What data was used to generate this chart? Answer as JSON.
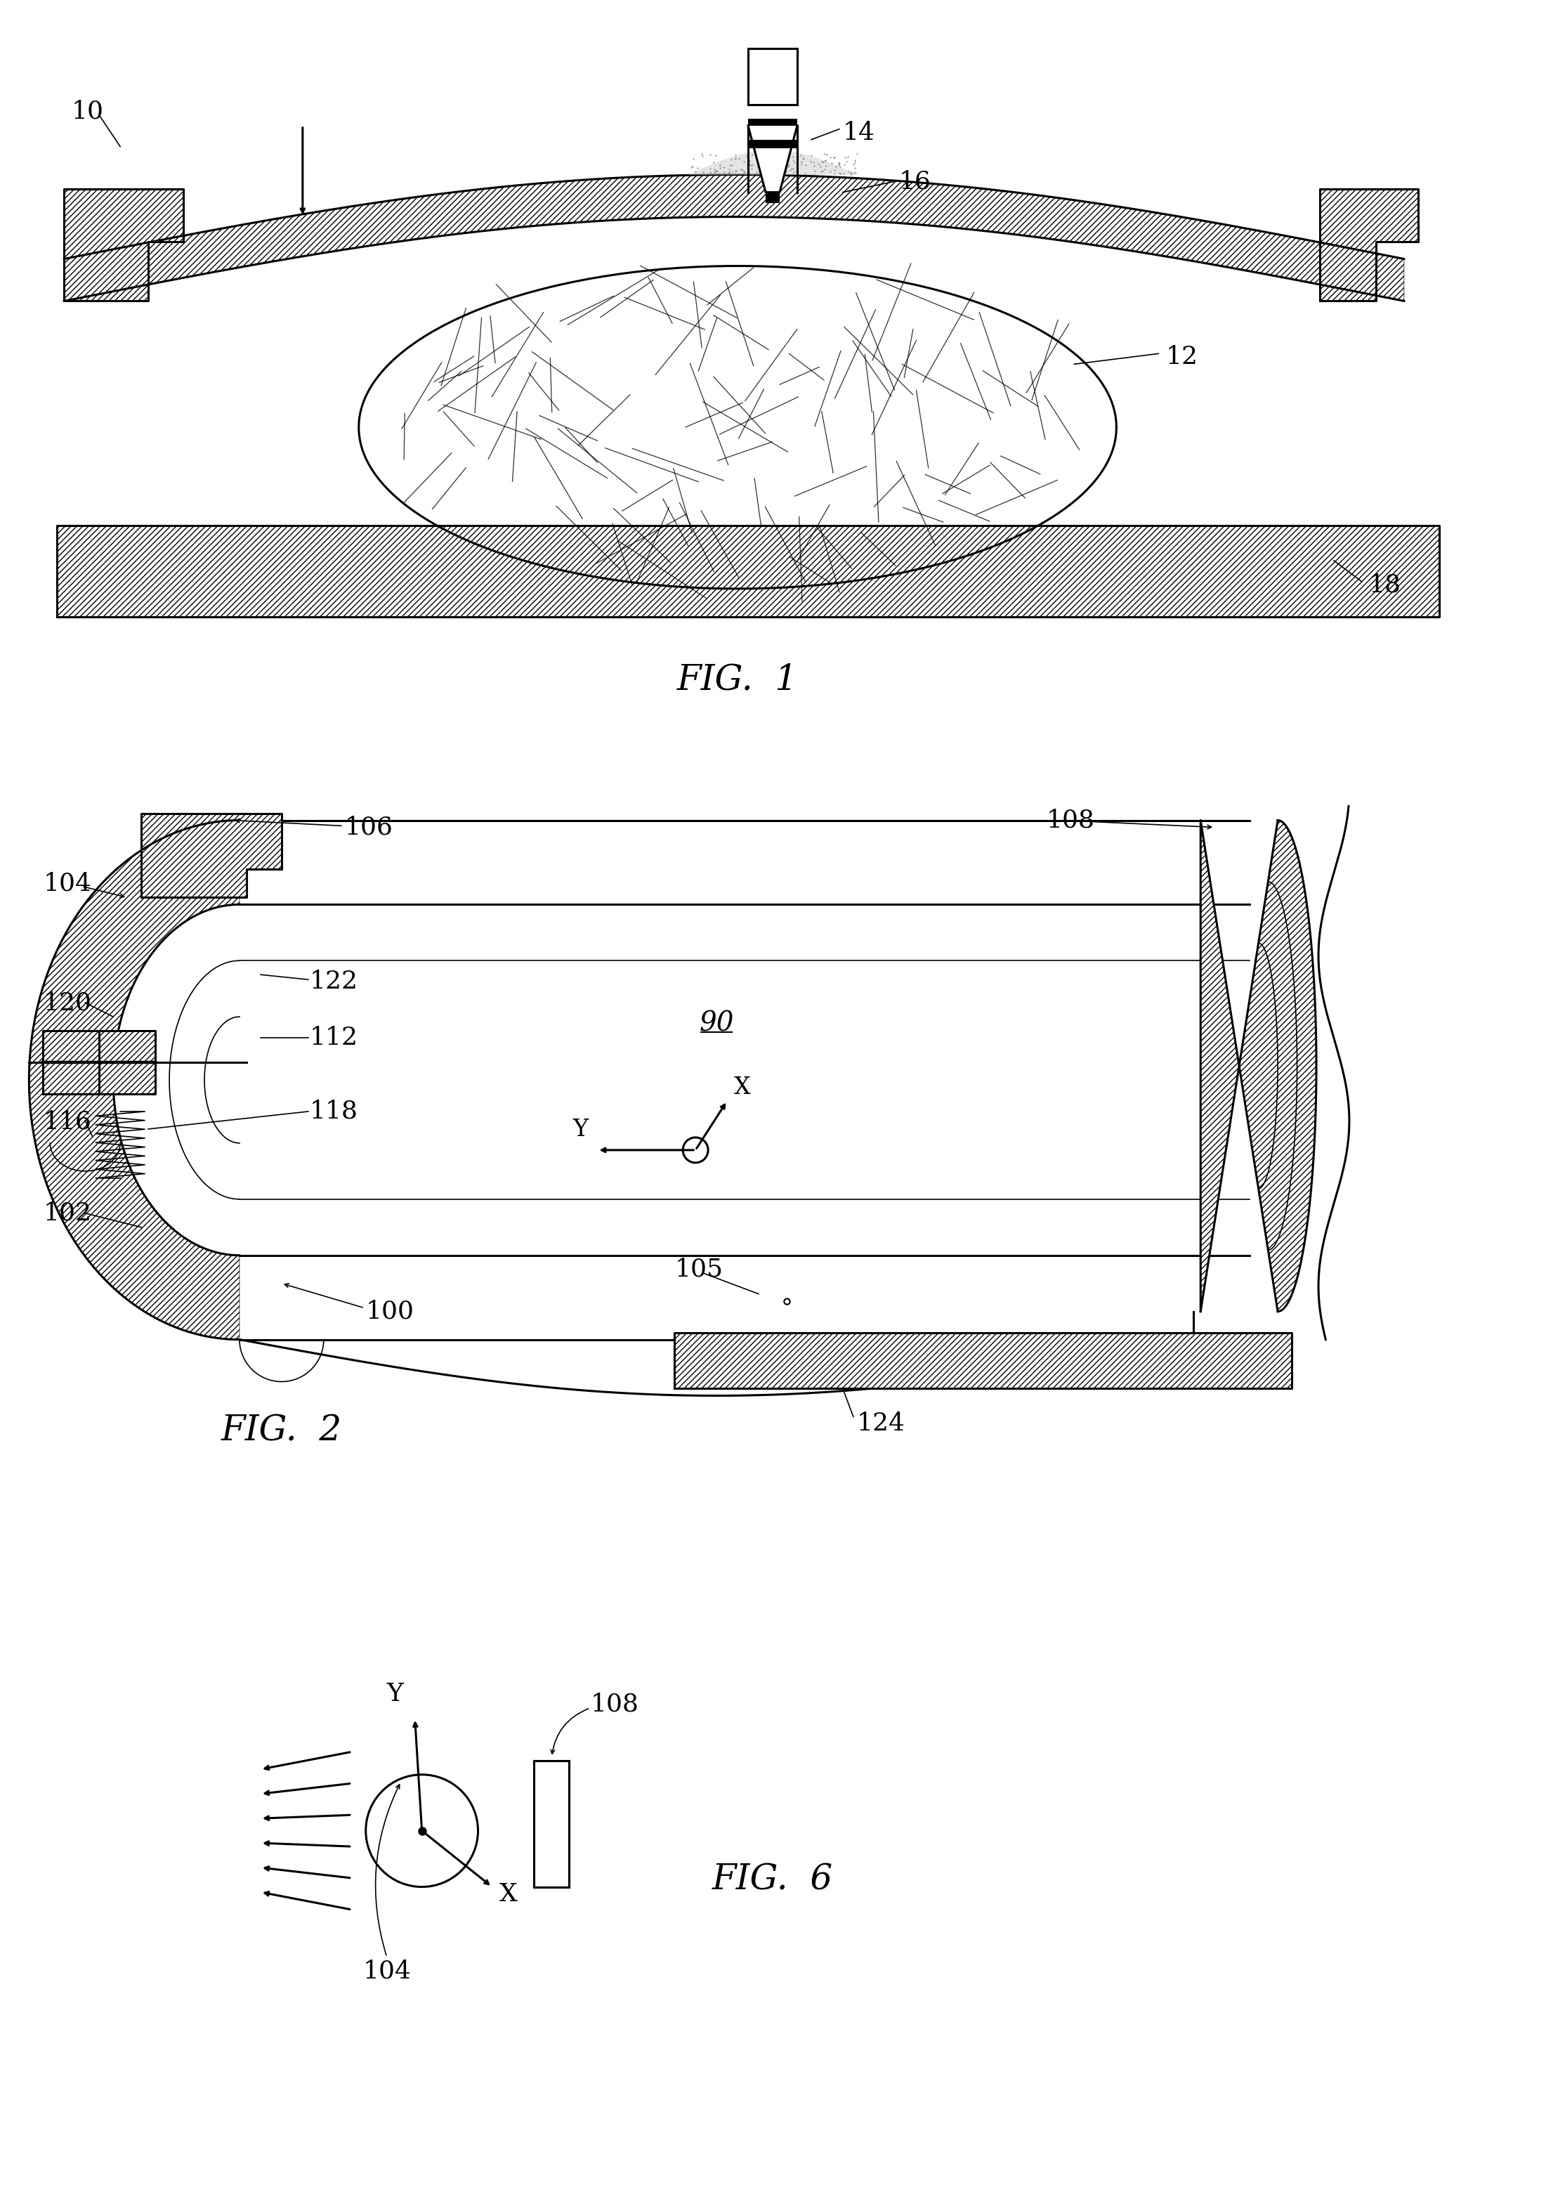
{
  "background_color": "#ffffff",
  "line_color": "#000000",
  "fig1_label": "FIG.  1",
  "fig2_label": "FIG.  2",
  "fig6_label": "FIG.  6",
  "label_fontsize": 36,
  "number_fontsize": 26,
  "lw_main": 2.2,
  "lw_thin": 1.2,
  "lw_thick": 3.0
}
